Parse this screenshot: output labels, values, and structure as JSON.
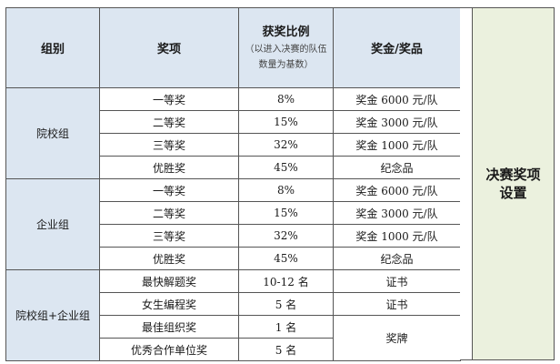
{
  "header": {
    "group": "组别",
    "award": "奖项",
    "ratio_title": "获奖比例",
    "ratio_note": "（以进入决赛的队伍数量为基数）",
    "prize": "奖金/奖品"
  },
  "groups": [
    {
      "name": "院校组",
      "rows": [
        {
          "award": "一等奖",
          "ratio": "8%",
          "prize": "奖金 6000 元/队"
        },
        {
          "award": "二等奖",
          "ratio": "15%",
          "prize": "奖金 3000 元/队"
        },
        {
          "award": "三等奖",
          "ratio": "32%",
          "prize": "奖金 1000 元/队"
        },
        {
          "award": "优胜奖",
          "ratio": "45%",
          "prize": "纪念品"
        }
      ]
    },
    {
      "name": "企业组",
      "rows": [
        {
          "award": "一等奖",
          "ratio": "8%",
          "prize": "奖金 6000 元/队"
        },
        {
          "award": "二等奖",
          "ratio": "15%",
          "prize": "奖金 3000 元/队"
        },
        {
          "award": "三等奖",
          "ratio": "32%",
          "prize": "奖金 1000 元/队"
        },
        {
          "award": "优胜奖",
          "ratio": "45%",
          "prize": "纪念品"
        }
      ]
    },
    {
      "name": "院校组+企业组",
      "rows": [
        {
          "award": "最快解题奖",
          "ratio": "10-12 名",
          "prize": "证书"
        },
        {
          "award": "女生编程奖",
          "ratio": "5 名",
          "prize": "证书"
        },
        {
          "award": "最佳组织奖",
          "ratio": "1 名",
          "prize": "奖牌"
        },
        {
          "award": "优秀合作单位奖",
          "ratio": "5 名",
          "prize": ""
        }
      ]
    }
  ],
  "side_label": "决赛奖项设置",
  "colors": {
    "header_bg": "#dce6f1",
    "side_bg": "#ebf1de",
    "border": "#555555"
  }
}
